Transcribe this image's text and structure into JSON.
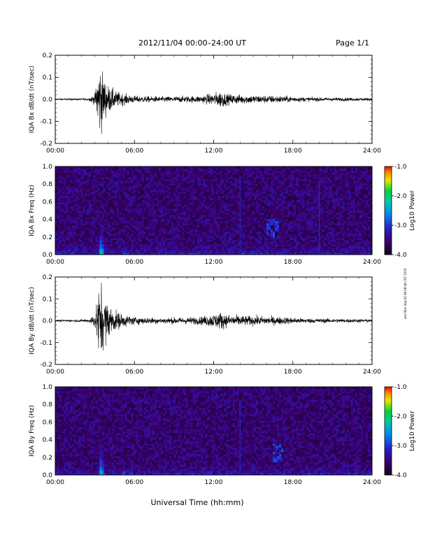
{
  "header": {
    "title": "2012/11/04  00:00–24:00 UT",
    "page": "Page 1/1"
  },
  "stamp": "vert Mon Sep 02 08:08:48 CST 2019",
  "colors": {
    "trace": "#000000",
    "axes": "#000000",
    "background": "#1a0a40"
  },
  "chart_data": [
    {
      "type": "line",
      "ylabel": "IQA Bx dB/dt (nT/sec)",
      "ylim": [
        -0.2,
        0.2
      ],
      "yticks": [
        "0.2",
        "0.1",
        "0.0",
        "-0.1",
        "-0.2"
      ],
      "xticks": [
        "00:00",
        "06:00",
        "12:00",
        "18:00",
        "24:00"
      ],
      "xlim": [
        0,
        24
      ],
      "series": [
        {
          "x": [
            0,
            2.5,
            3.0,
            3.3,
            3.4,
            3.5,
            3.7,
            4.0,
            4.5,
            5.0,
            6.0,
            8.0,
            11.0,
            12.0,
            12.6,
            13.0,
            14.5,
            17.0,
            19.0,
            24.0
          ],
          "amp": [
            0.004,
            0.006,
            0.03,
            0.2,
            0.2,
            0.18,
            0.12,
            0.08,
            0.05,
            0.035,
            0.02,
            0.015,
            0.02,
            0.035,
            0.05,
            0.03,
            0.025,
            0.02,
            0.012,
            0.008
          ]
        }
      ]
    },
    {
      "type": "heatmap",
      "ylabel": "IQA Bx Freq (Hz)",
      "ylim": [
        0,
        1.0
      ],
      "yticks": [
        "1.0",
        "0.8",
        "0.6",
        "0.4",
        "0.2",
        "0.0"
      ],
      "xticks": [
        "00:00",
        "06:00",
        "12:00",
        "18:00",
        "24:00"
      ],
      "xlim": [
        0,
        24
      ],
      "colorbar": {
        "label": "Log10 Power",
        "range": [
          -4.0,
          -1.0
        ],
        "ticks": [
          "-1.0",
          "-2.0",
          "-3.0",
          "-4.0"
        ]
      },
      "events": [
        {
          "kind": "burst",
          "t": 3.5,
          "fmax": 0.6,
          "power": -1.2
        },
        {
          "kind": "burst",
          "t": 5.2,
          "fmax": 0.2,
          "power": -2.5
        },
        {
          "kind": "line",
          "t": 14.0,
          "power": -3.0
        },
        {
          "kind": "line",
          "t": 20.0,
          "power": -3.0
        },
        {
          "kind": "patch",
          "t": [
            16.0,
            17.0
          ],
          "f": [
            0.2,
            0.4
          ],
          "power": -3.0
        }
      ]
    },
    {
      "type": "line",
      "ylabel": "IQA By dB/dt (nT/sec)",
      "ylim": [
        -0.2,
        0.2
      ],
      "yticks": [
        "0.2",
        "0.1",
        "0.0",
        "-0.1",
        "-0.2"
      ],
      "xticks": [
        "00:00",
        "06:00",
        "12:00",
        "18:00",
        "24:00"
      ],
      "xlim": [
        0,
        24
      ],
      "series": [
        {
          "x": [
            0,
            2.5,
            3.0,
            3.3,
            3.4,
            3.5,
            3.7,
            4.0,
            4.5,
            5.0,
            6.0,
            8.0,
            11.0,
            12.0,
            12.6,
            13.0,
            14.5,
            17.0,
            19.0,
            24.0
          ],
          "amp": [
            0.005,
            0.008,
            0.04,
            0.2,
            0.2,
            0.2,
            0.15,
            0.1,
            0.06,
            0.04,
            0.022,
            0.016,
            0.022,
            0.04,
            0.05,
            0.035,
            0.028,
            0.022,
            0.014,
            0.009
          ]
        }
      ]
    },
    {
      "type": "heatmap",
      "ylabel": "IQA By Freq (Hz)",
      "ylim": [
        0,
        1.0
      ],
      "yticks": [
        "1.0",
        "0.8",
        "0.6",
        "0.4",
        "0.2",
        "0.0"
      ],
      "xticks": [
        "00:00",
        "06:00",
        "12:00",
        "18:00",
        "24:00"
      ],
      "xlim": [
        0,
        24
      ],
      "xlabel": "Universal Time (hh:mm)",
      "colorbar": {
        "label": "Log10 Power",
        "range": [
          -4.0,
          -1.0
        ],
        "ticks": [
          "-1.0",
          "-2.0",
          "-3.0",
          "-4.0"
        ]
      },
      "events": [
        {
          "kind": "burst",
          "t": 3.5,
          "fmax": 0.6,
          "power": -1.2
        },
        {
          "kind": "burst",
          "t": 5.2,
          "fmax": 0.2,
          "power": -2.5
        },
        {
          "kind": "burst",
          "t": 13.0,
          "fmax": 0.4,
          "power": -2.6
        },
        {
          "kind": "line",
          "t": 14.0,
          "power": -3.0
        },
        {
          "kind": "patch",
          "t": [
            16.5,
            17.2
          ],
          "f": [
            0.15,
            0.35
          ],
          "power": -3.0
        }
      ]
    }
  ]
}
